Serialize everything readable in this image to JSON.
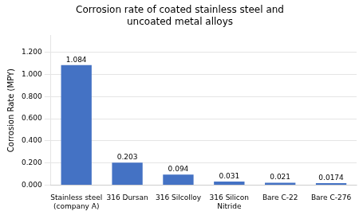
{
  "chart_data": {
    "type": "bar",
    "title": "Corrosion rate of coated stainless steel and\nuncoated metal alloys",
    "categories": [
      "Stainless steel\n(company A)",
      "316 Dursan",
      "316 Silcolloy",
      "316 Silicon\nNitride",
      "Bare C-22",
      "Bare C-276"
    ],
    "values": [
      1.084,
      0.203,
      0.094,
      0.031,
      0.021,
      0.0174
    ],
    "color": "#4472C4",
    "ylabel": "Corrosion Rate (MPY)",
    "ylim": [
      0,
      1.35
    ],
    "yticks": [
      {
        "value": 0.0,
        "label": "0.000"
      },
      {
        "value": 0.2,
        "label": "0.200"
      },
      {
        "value": 0.4,
        "label": "0.400"
      },
      {
        "value": 0.6,
        "label": "0.600"
      },
      {
        "value": 0.8,
        "label": "0.800"
      },
      {
        "value": 1.0,
        "label": "1.000"
      },
      {
        "value": 1.2,
        "label": "1.200"
      }
    ],
    "grid": true,
    "data_labels": true
  }
}
